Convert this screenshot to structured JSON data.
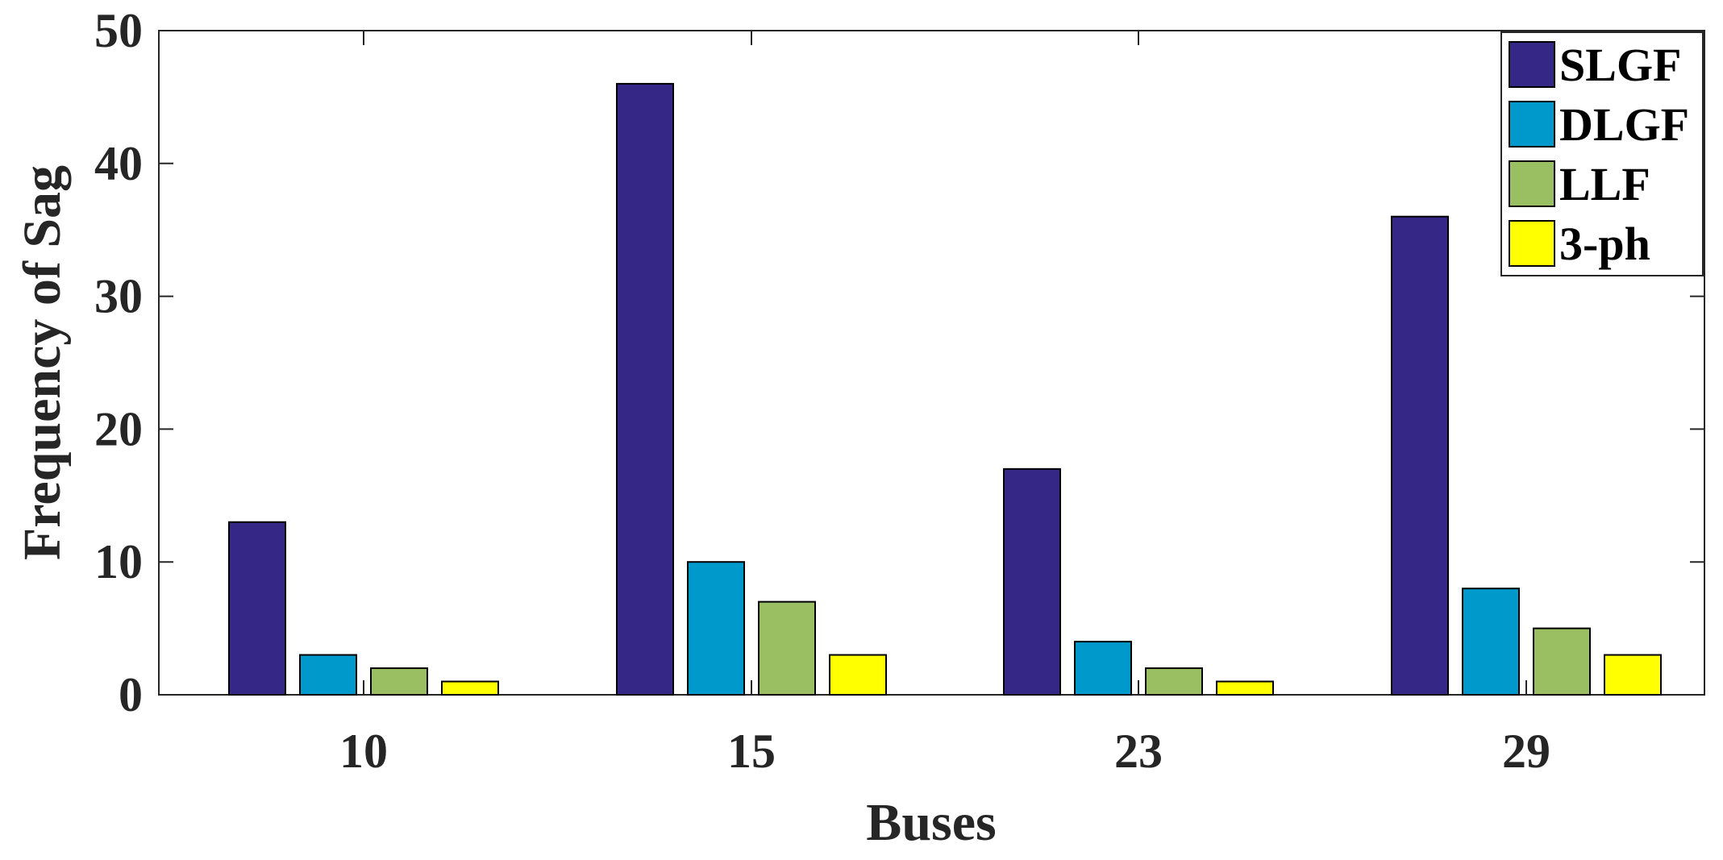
{
  "chart_data": {
    "type": "bar",
    "title": "",
    "xlabel": "Buses",
    "ylabel": "Frequency of Sag",
    "categories": [
      "10",
      "15",
      "23",
      "29"
    ],
    "series": [
      {
        "name": "SLGF",
        "color": "#352785",
        "values": [
          13,
          46,
          17,
          36
        ]
      },
      {
        "name": "DLGF",
        "color": "#0099cc",
        "values": [
          3,
          10,
          4,
          8
        ]
      },
      {
        "name": "LLF",
        "color": "#99bf62",
        "values": [
          2,
          7,
          2,
          5
        ]
      },
      {
        "name": "3-ph",
        "color": "#ffff00",
        "values": [
          1,
          3,
          1,
          3
        ]
      }
    ],
    "ylim": [
      0,
      50
    ],
    "yticks": [
      "0",
      "10",
      "20",
      "30",
      "40",
      "50"
    ],
    "grid": false,
    "legend_position": "top-right"
  }
}
